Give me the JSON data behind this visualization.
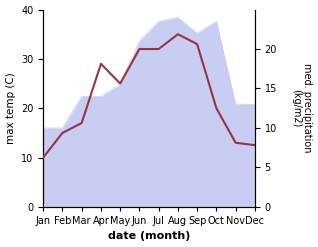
{
  "months": [
    "Jan",
    "Feb",
    "Mar",
    "Apr",
    "May",
    "Jun",
    "Jul",
    "Aug",
    "Sep",
    "Oct",
    "Nov",
    "Dec"
  ],
  "temp": [
    10,
    15,
    17,
    29,
    25,
    32,
    32,
    35,
    33,
    20,
    13,
    12.5
  ],
  "precip": [
    10,
    10,
    14,
    14,
    15.5,
    21,
    23.5,
    24,
    22,
    23.5,
    13,
    13
  ],
  "temp_color": "#993344",
  "precip_fill_color": "#c8cef2",
  "precip_line_color": "#c8cef2",
  "xlabel": "date (month)",
  "ylabel_left": "max temp (C)",
  "ylabel_right": "med. precipitation\n(kg/m2)",
  "ylim_left": [
    0,
    40
  ],
  "ylim_right": [
    0,
    25
  ],
  "yticks_left": [
    0,
    10,
    20,
    30,
    40
  ],
  "yticks_right": [
    0,
    5,
    10,
    15,
    20
  ]
}
